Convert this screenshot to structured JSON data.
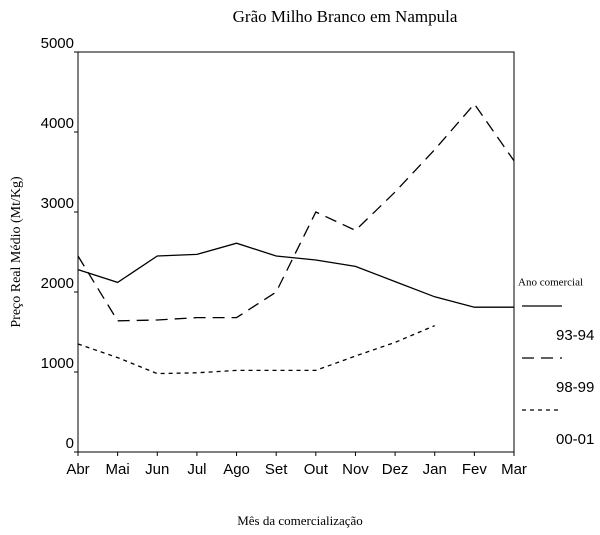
{
  "chart_data": {
    "type": "line",
    "title": "Grão Milho Branco em Nampula",
    "x_label": "Mês da comercialização",
    "y_label": "Preço Real Médio (Mt/Kg)",
    "categories": [
      "Abr",
      "Mai",
      "Jun",
      "Jul",
      "Ago",
      "Set",
      "Out",
      "Nov",
      "Dez",
      "Jan",
      "Fev",
      "Mar"
    ],
    "series": [
      {
        "name": "93-94",
        "color": "#000000",
        "dash": "solid",
        "values": [
          2280,
          2120,
          2450,
          2470,
          2610,
          2450,
          2400,
          2320,
          2130,
          1940,
          1810,
          1810
        ]
      },
      {
        "name": "98-99",
        "color": "#000000",
        "dash": "dashed",
        "values": [
          2450,
          1640,
          1650,
          1680,
          1680,
          2000,
          3000,
          2770,
          3250,
          3780,
          4350,
          3640
        ]
      },
      {
        "name": "00-01",
        "color": "#000000",
        "dash": "dotted",
        "values": [
          1350,
          1180,
          980,
          990,
          1020,
          1020,
          1020,
          1200,
          1370,
          1580,
          null,
          null
        ]
      }
    ],
    "legend_title": "Ano comercial",
    "legend": "right",
    "ylim": [
      0,
      5000
    ],
    "yticks": [
      0,
      1000,
      2000,
      3000,
      4000,
      5000
    ],
    "grid": false
  }
}
